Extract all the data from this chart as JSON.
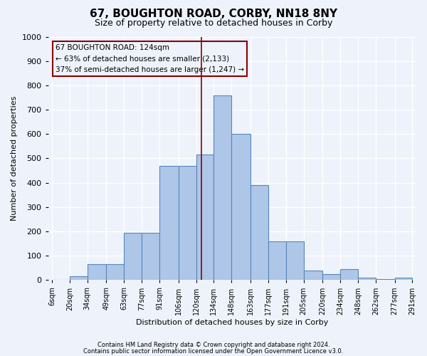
{
  "title": "67, BOUGHTON ROAD, CORBY, NN18 8NY",
  "subtitle": "Size of property relative to detached houses in Corby",
  "xlabel": "Distribution of detached houses by size in Corby",
  "ylabel": "Number of detached properties",
  "bin_edges": [
    6,
    20,
    34,
    49,
    63,
    77,
    91,
    106,
    120,
    134,
    148,
    163,
    177,
    191,
    205,
    220,
    234,
    248,
    262,
    277,
    291
  ],
  "bar_heights": [
    0,
    15,
    65,
    65,
    195,
    195,
    470,
    470,
    515,
    760,
    600,
    390,
    160,
    160,
    40,
    25,
    45,
    10,
    5,
    10
  ],
  "bar_color": "#aec6e8",
  "bar_edge_color": "#5588bb",
  "tick_labels": [
    "6sqm",
    "20sqm",
    "34sqm",
    "49sqm",
    "63sqm",
    "77sqm",
    "91sqm",
    "106sqm",
    "120sqm",
    "134sqm",
    "148sqm",
    "163sqm",
    "177sqm",
    "191sqm",
    "205sqm",
    "220sqm",
    "234sqm",
    "248sqm",
    "262sqm",
    "277sqm",
    "291sqm"
  ],
  "red_line_x": 124,
  "ylim": [
    0,
    1000
  ],
  "yticks": [
    0,
    100,
    200,
    300,
    400,
    500,
    600,
    700,
    800,
    900,
    1000
  ],
  "annotation_text": "67 BOUGHTON ROAD: 124sqm\n← 63% of detached houses are smaller (2,133)\n37% of semi-detached houses are larger (1,247) →",
  "footer_line1": "Contains HM Land Registry data © Crown copyright and database right 2024.",
  "footer_line2": "Contains public sector information licensed under the Open Government Licence v3.0.",
  "bg_color": "#eef3fb",
  "grid_color": "#ffffff",
  "title_fontsize": 11,
  "subtitle_fontsize": 9,
  "axis_label_fontsize": 8
}
